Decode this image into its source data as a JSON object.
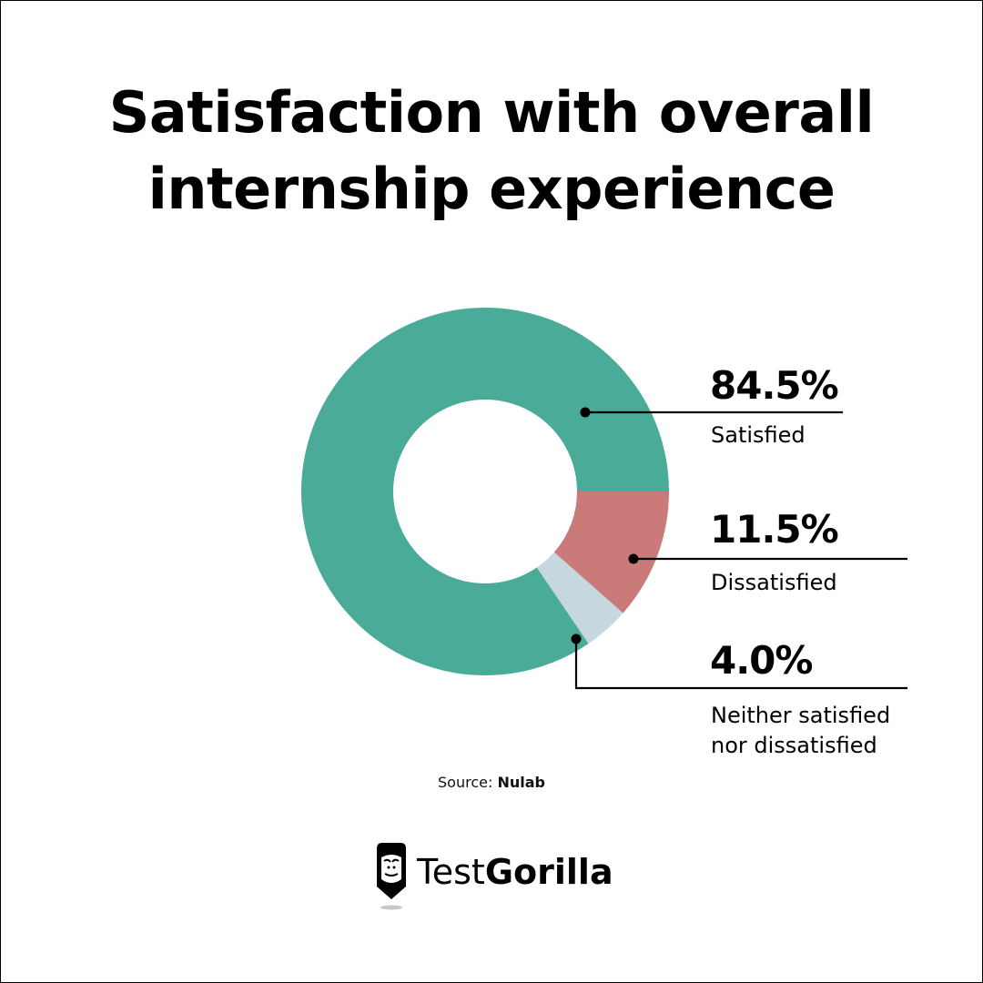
{
  "title": {
    "line1": "Satisfaction with overall",
    "line2": "internship experience"
  },
  "chart_data": {
    "type": "pie",
    "subtype": "donut",
    "title": "Satisfaction with overall internship experience",
    "categories": [
      "Satisfied",
      "Dissatisfied",
      "Neither satisfied nor dissatisfied"
    ],
    "values": [
      84.5,
      11.5,
      4.0
    ],
    "labels": [
      "84.5%",
      "11.5%",
      "4.0%"
    ],
    "colors": [
      "#4aab98",
      "#cb7a7a",
      "#c6d7df"
    ],
    "legend_position": "right (callout labels)"
  },
  "labels": {
    "satisfied": {
      "pct": "84.5%",
      "text": "Satisfied"
    },
    "dissatisfied": {
      "pct": "11.5%",
      "text": "Dissatisfied"
    },
    "neither": {
      "pct": "4.0%",
      "line1": "Neither satisfied",
      "line2": "nor dissatisfied"
    }
  },
  "source": {
    "prefix": "Source: ",
    "name": "Nulab"
  },
  "brand": {
    "light": "Test",
    "bold": "Gorilla",
    "logo_icon": "gorilla-pencil-icon"
  }
}
